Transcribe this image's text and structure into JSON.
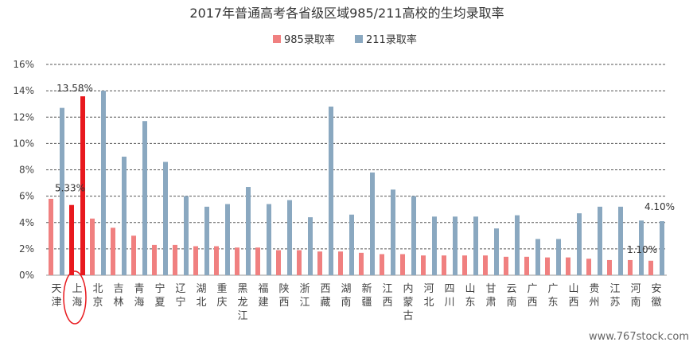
{
  "chart_data": {
    "type": "bar",
    "title": "2017年普通高考各省级区域985/211高校的生均录取率",
    "xlabel": "",
    "ylabel": "",
    "ylim": [
      0,
      16
    ],
    "yticks": [
      "0%",
      "2%",
      "4%",
      "6%",
      "8%",
      "10%",
      "12%",
      "14%",
      "16%"
    ],
    "grid": true,
    "legend_position": "top-center",
    "categories": [
      "天津",
      "上海",
      "北京",
      "吉林",
      "青海",
      "宁夏",
      "辽宁",
      "湖北",
      "重庆",
      "黑龙江",
      "福建",
      "陕西",
      "浙江",
      "西藏",
      "湖南",
      "新疆",
      "江西",
      "内蒙古",
      "河北",
      "四川",
      "山东",
      "甘肃",
      "云南",
      "广西",
      "广东",
      "山西",
      "贵州",
      "江苏",
      "河南",
      "安徽"
    ],
    "series": [
      {
        "name": "985录取率",
        "color": "#f08080",
        "values": [
          5.8,
          5.33,
          4.3,
          3.6,
          3.0,
          2.3,
          2.3,
          2.2,
          2.2,
          2.1,
          2.1,
          1.9,
          1.9,
          1.8,
          1.8,
          1.7,
          1.6,
          1.6,
          1.5,
          1.5,
          1.5,
          1.5,
          1.4,
          1.4,
          1.35,
          1.35,
          1.25,
          1.15,
          1.15,
          1.1
        ]
      },
      {
        "name": "211录取率",
        "color": "#8aa8c0",
        "values": [
          12.7,
          13.58,
          14.0,
          9.0,
          11.7,
          8.6,
          6.0,
          5.2,
          5.4,
          6.7,
          5.4,
          5.7,
          4.4,
          12.8,
          4.6,
          7.8,
          6.5,
          6.0,
          4.45,
          4.45,
          4.45,
          3.55,
          4.55,
          2.75,
          2.75,
          4.7,
          5.2,
          5.2,
          4.15,
          4.1
        ]
      }
    ],
    "highlight": {
      "category": "上海",
      "color": "#e8191e"
    },
    "data_labels": [
      {
        "text": "13.58%",
        "category": "上海",
        "series": "211录取率"
      },
      {
        "text": "5.33%",
        "category": "上海",
        "series": "985录取率"
      },
      {
        "text": "4.10%",
        "category": "安徽",
        "series": "211录取率"
      },
      {
        "text": "1.10%",
        "category": "安徽",
        "series": "985录取率"
      }
    ]
  },
  "watermark": "www.767stock.com"
}
